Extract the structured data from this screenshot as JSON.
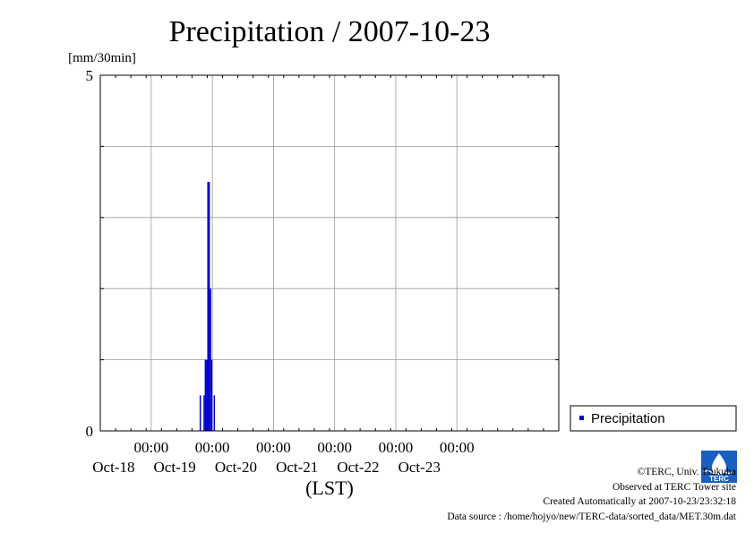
{
  "chart_data": {
    "type": "bar",
    "title": "Precipitation / 2007-10-23",
    "ylabel": "[mm/30min]",
    "xlabel": "(LST)",
    "ylim": [
      0,
      5
    ],
    "yticks": [
      "0",
      "5"
    ],
    "x_range_hours": [
      -20,
      160
    ],
    "grid": true,
    "xticks": [
      {
        "hour": 0,
        "time": "00:00",
        "date": "Oct-18"
      },
      {
        "hour": 24,
        "time": "00:00",
        "date": "Oct-19"
      },
      {
        "hour": 48,
        "time": "00:00",
        "date": "Oct-20"
      },
      {
        "hour": 72,
        "time": "00:00",
        "date": "Oct-21"
      },
      {
        "hour": 96,
        "time": "00:00",
        "date": "Oct-22"
      },
      {
        "hour": 120,
        "time": "00:00",
        "date": "Oct-23"
      }
    ],
    "series": [
      {
        "name": "Precipitation",
        "color": "#0000cc",
        "points": [
          {
            "hour": 19.0,
            "value": 0.5
          },
          {
            "hour": 20.5,
            "value": 0.5
          },
          {
            "hour": 21.0,
            "value": 1.0
          },
          {
            "hour": 21.5,
            "value": 1.0
          },
          {
            "hour": 22.0,
            "value": 3.5
          },
          {
            "hour": 22.5,
            "value": 3.5
          },
          {
            "hour": 23.0,
            "value": 2.0
          },
          {
            "hour": 23.5,
            "value": 1.0
          },
          {
            "hour": 24.5,
            "value": 0.5
          }
        ]
      }
    ],
    "legend": {
      "label": "Precipitation",
      "placement": "right"
    }
  },
  "credits": {
    "copyright": "©TERC, Univ. Tsukuba",
    "site": "Observed at TERC Tower site",
    "created": "Created Automatically at 2007-10-23/23:32:18",
    "source": "Data source : /home/hojyo/new/TERC-data/sorted_data/MET.30m.dat"
  },
  "logo": {
    "text": "TERC",
    "color": "#1a5fbf"
  }
}
